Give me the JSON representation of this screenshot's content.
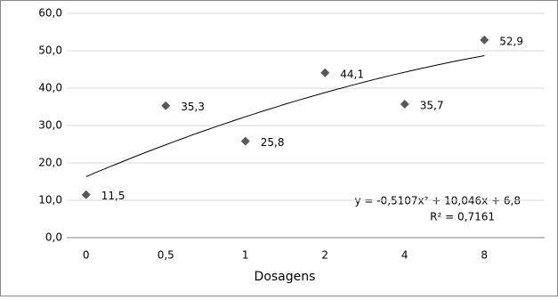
{
  "chart_data": {
    "type": "scatter",
    "x_label": "Dosagens",
    "categories": [
      "0",
      "0,5",
      "1",
      "2",
      "4",
      "8"
    ],
    "values": [
      11.5,
      35.3,
      25.8,
      44.1,
      35.7,
      52.9
    ],
    "value_labels": [
      "11,5",
      "35,3",
      "25,8",
      "44,1",
      "35,7",
      "52,9"
    ],
    "color": "#595959",
    "ylim": [
      0,
      60
    ],
    "yticks": [
      {
        "value": 0,
        "label": "0,0"
      },
      {
        "value": 10,
        "label": "10,0"
      },
      {
        "value": 20,
        "label": "20,0"
      },
      {
        "value": 30,
        "label": "30,0"
      },
      {
        "value": 40,
        "label": "40,0"
      },
      {
        "value": 50,
        "label": "50,0"
      },
      {
        "value": 60,
        "label": "60,0"
      }
    ],
    "grid": true,
    "trendline": {
      "coefficients": [
        -0.5107,
        10.046,
        6.8
      ],
      "equation": "y = -0,5107x² + 10,046x + 6,8",
      "r_squared": "R² = 0,7161"
    }
  }
}
